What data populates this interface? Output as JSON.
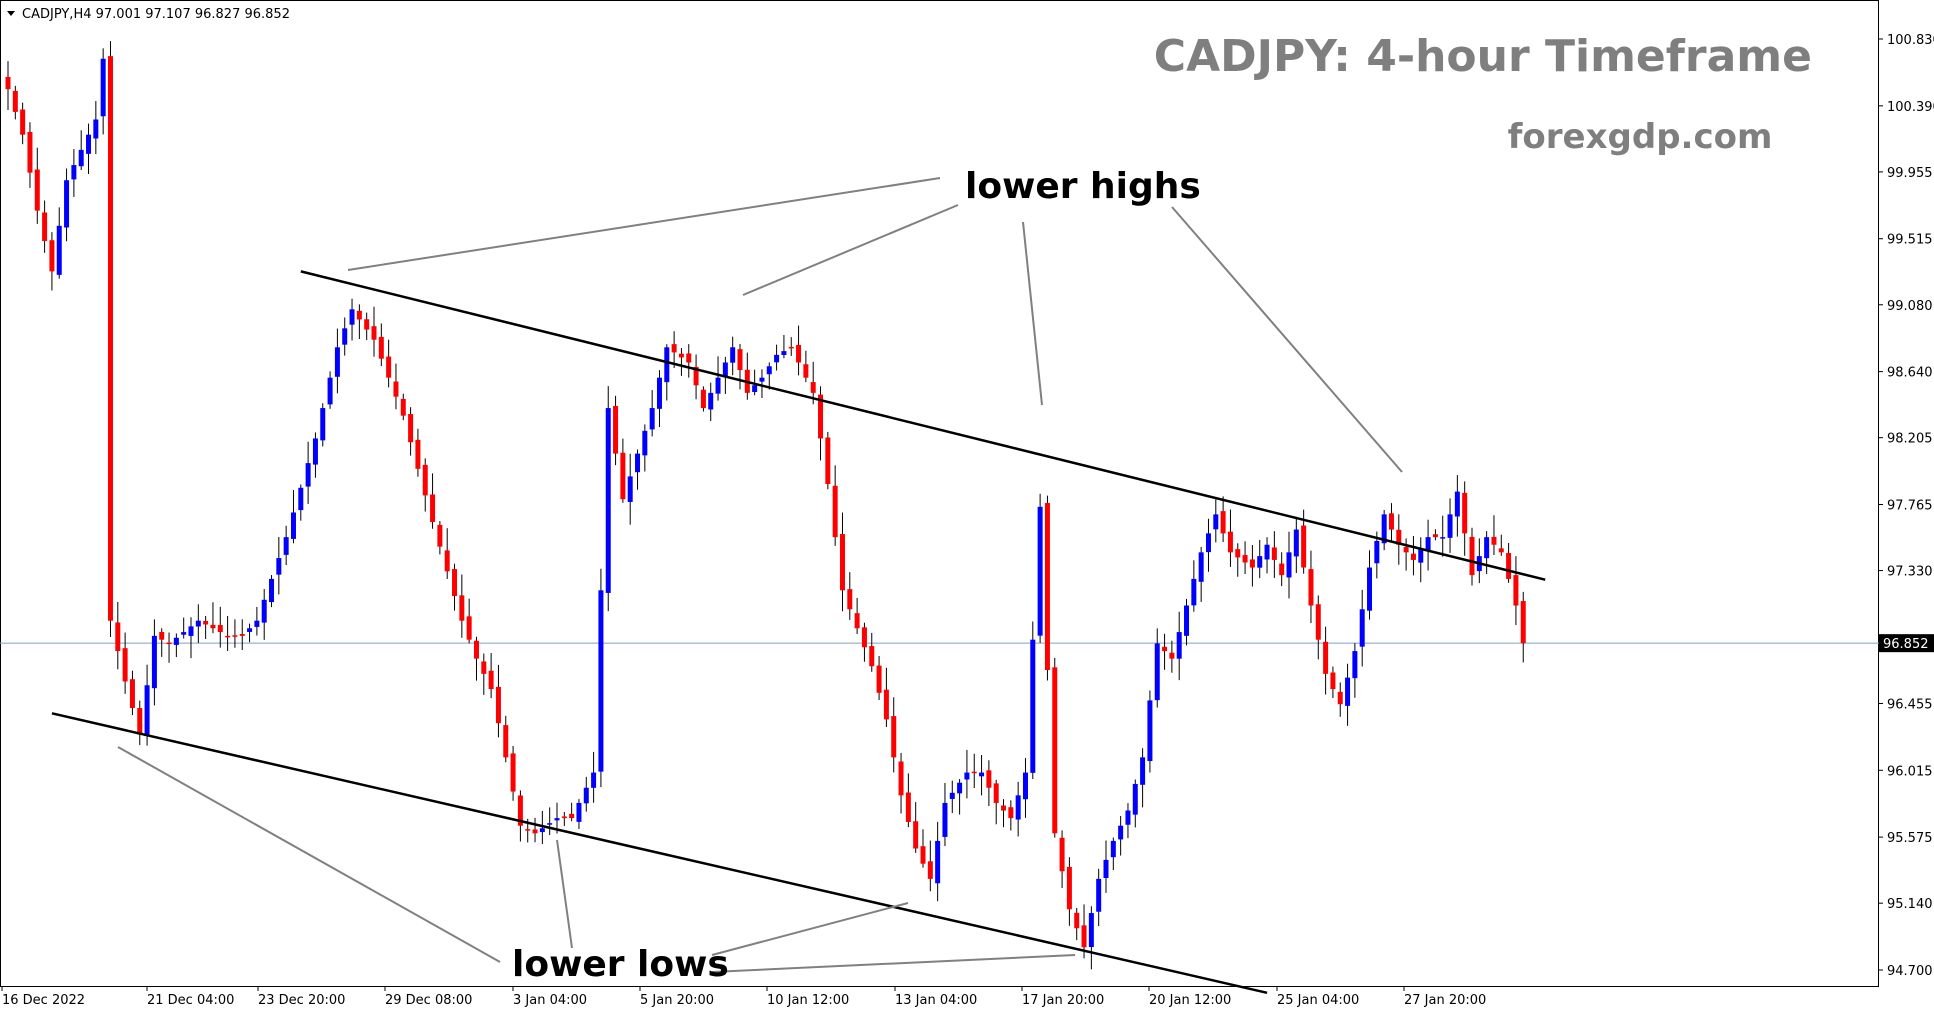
{
  "header": {
    "symbol_info": "CADJPY,H4  97.001 97.107 96.827 96.852"
  },
  "title": "CADJPY: 4-hour Timeframe",
  "site": "forexgdp.com",
  "annotations": {
    "lower_highs": "lower highs",
    "lower_lows": "lower lows"
  },
  "current_price": {
    "label": "96.852",
    "value": 96.852
  },
  "colors": {
    "bull": "#0000ff",
    "bear": "#ff0000",
    "wick": "#000000",
    "trendline": "#000000",
    "pointer": "#808080",
    "price_line": "#7fa0c8"
  },
  "chart_data": {
    "type": "candlestick",
    "title": "CADJPY: 4-hour Timeframe",
    "symbol": "CADJPY",
    "timeframe": "H4",
    "ylim": [
      94.55,
      101.0
    ],
    "y_ticks": [
      "100.830",
      "100.390",
      "99.955",
      "99.515",
      "99.080",
      "98.640",
      "98.205",
      "97.765",
      "97.330",
      "96.852",
      "96.455",
      "96.015",
      "95.575",
      "95.140",
      "94.700"
    ],
    "x_ticks": [
      "16 Dec 2022",
      "21 Dec 04:00",
      "23 Dec 20:00",
      "29 Dec 08:00",
      "3 Jan 04:00",
      "5 Jan 20:00",
      "10 Jan 12:00",
      "13 Jan 04:00",
      "17 Jan 20:00",
      "20 Jan 12:00",
      "25 Jan 04:00",
      "27 Jan 20:00"
    ],
    "close_anchors": [
      [
        0,
        100.5
      ],
      [
        2,
        100.2
      ],
      [
        4,
        99.7
      ],
      [
        6,
        99.3
      ],
      [
        8,
        99.9
      ],
      [
        10,
        100.1
      ],
      [
        12,
        100.3
      ],
      [
        13,
        100.7
      ],
      [
        14,
        97.0
      ],
      [
        16,
        96.6
      ],
      [
        18,
        96.25
      ],
      [
        20,
        96.9
      ],
      [
        22,
        96.85
      ],
      [
        26,
        97.0
      ],
      [
        30,
        96.9
      ],
      [
        32,
        96.9
      ],
      [
        34,
        97.0
      ],
      [
        38,
        97.55
      ],
      [
        42,
        98.2
      ],
      [
        45,
        98.8
      ],
      [
        47,
        99.05
      ],
      [
        50,
        98.85
      ],
      [
        54,
        98.35
      ],
      [
        58,
        97.65
      ],
      [
        62,
        97.0
      ],
      [
        64,
        96.75
      ],
      [
        66,
        96.55
      ],
      [
        70,
        95.65
      ],
      [
        72,
        95.6
      ],
      [
        75,
        95.7
      ],
      [
        77,
        95.7
      ],
      [
        80,
        96.0
      ],
      [
        82,
        98.4
      ],
      [
        84,
        97.8
      ],
      [
        88,
        98.4
      ],
      [
        90,
        98.8
      ],
      [
        93,
        98.7
      ],
      [
        95,
        98.4
      ],
      [
        97,
        98.6
      ],
      [
        99,
        98.8
      ],
      [
        101,
        98.5
      ],
      [
        103,
        98.6
      ],
      [
        105,
        98.75
      ],
      [
        107,
        98.8
      ],
      [
        110,
        98.5
      ],
      [
        112,
        97.9
      ],
      [
        114,
        97.2
      ],
      [
        118,
        96.7
      ],
      [
        120,
        96.35
      ],
      [
        122,
        95.85
      ],
      [
        124,
        95.5
      ],
      [
        126,
        95.3
      ],
      [
        128,
        95.8
      ],
      [
        131,
        96.0
      ],
      [
        133,
        96.0
      ],
      [
        135,
        95.8
      ],
      [
        137,
        95.7
      ],
      [
        139,
        96.0
      ],
      [
        141,
        97.75
      ],
      [
        143,
        95.6
      ],
      [
        145,
        95.1
      ],
      [
        147,
        94.85
      ],
      [
        149,
        95.3
      ],
      [
        151,
        95.55
      ],
      [
        153,
        95.75
      ],
      [
        155,
        96.1
      ],
      [
        157,
        96.85
      ],
      [
        159,
        96.75
      ],
      [
        161,
        97.1
      ],
      [
        163,
        97.45
      ],
      [
        165,
        97.7
      ],
      [
        167,
        97.45
      ],
      [
        170,
        97.35
      ],
      [
        172,
        97.5
      ],
      [
        174,
        97.3
      ],
      [
        176,
        97.6
      ],
      [
        178,
        97.1
      ],
      [
        180,
        96.65
      ],
      [
        182,
        96.45
      ],
      [
        184,
        96.8
      ],
      [
        186,
        97.35
      ],
      [
        188,
        97.7
      ],
      [
        190,
        97.5
      ],
      [
        192,
        97.4
      ],
      [
        194,
        97.55
      ],
      [
        196,
        97.55
      ],
      [
        198,
        97.85
      ],
      [
        200,
        97.3
      ],
      [
        202,
        97.55
      ],
      [
        204,
        97.45
      ],
      [
        206,
        97.1
      ],
      [
        207,
        96.852
      ]
    ],
    "candle_count": 208,
    "trendlines": [
      {
        "name": "upper",
        "x": [
          40,
          210
        ],
        "y": [
          99.3,
          97.27
        ]
      },
      {
        "name": "lower",
        "x": [
          6,
          172
        ],
        "y": [
          96.39,
          94.55
        ]
      }
    ],
    "legend": "none",
    "grid": false
  }
}
